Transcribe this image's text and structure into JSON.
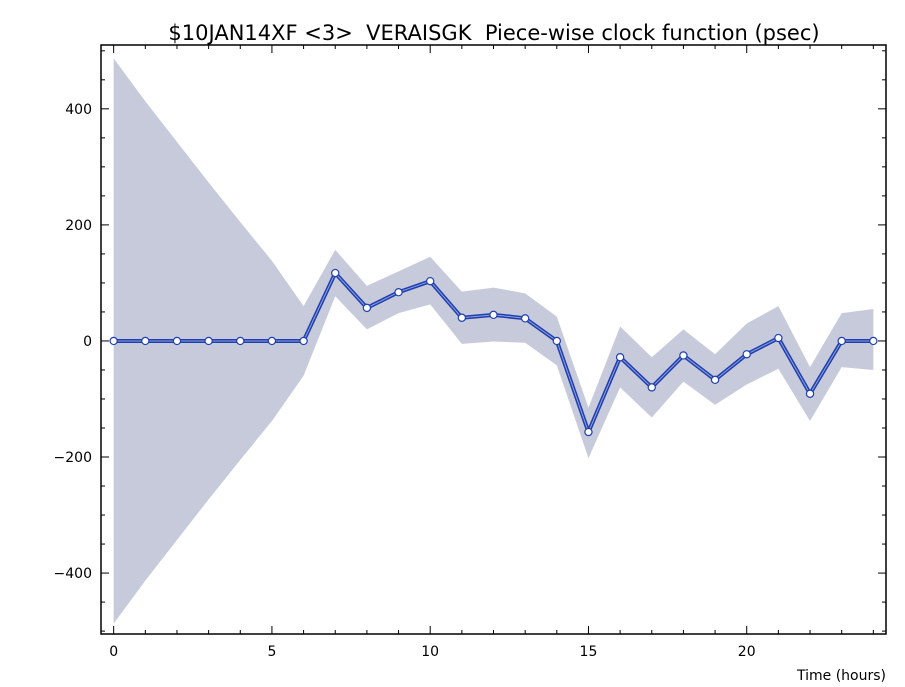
{
  "chart_data": {
    "type": "line",
    "title": "$10JAN14XF <3>  VERAISGK  Piece-wise clock function (psec)",
    "xlabel": "Time (hours)",
    "ylabel": "",
    "xlim": [
      -0.4,
      24.4
    ],
    "ylim": [
      -505,
      510
    ],
    "x_ticks": [
      "0",
      "5",
      "10",
      "15",
      "20"
    ],
    "y_ticks": [
      "400",
      "200",
      "0",
      "−200",
      "−400"
    ],
    "x_tick_values": [
      0,
      5,
      10,
      15,
      20
    ],
    "y_tick_values": [
      400,
      200,
      0,
      -200,
      -400
    ],
    "grid": false,
    "series": [
      {
        "x": [
          0,
          1,
          2,
          3,
          4,
          5,
          6,
          7,
          8,
          9,
          10,
          11,
          12,
          13,
          14,
          15,
          16,
          17,
          18,
          19,
          20,
          21,
          22,
          23,
          24
        ],
        "values": [
          0,
          0,
          0,
          0,
          0,
          0,
          0,
          117,
          57,
          84,
          103,
          40,
          45,
          39,
          0,
          -157,
          -28,
          -80,
          -25,
          -67,
          -23,
          5,
          -91,
          0,
          0
        ],
        "upper": [
          487,
          413,
          343,
          273,
          205,
          138,
          60,
          157,
          95,
          120,
          145,
          85,
          92,
          82,
          42,
          -115,
          25,
          -28,
          20,
          -23,
          30,
          60,
          -45,
          48,
          55
        ],
        "lower": [
          -487,
          -413,
          -343,
          -273,
          -205,
          -138,
          -60,
          77,
          20,
          48,
          63,
          -5,
          -1,
          -3,
          -42,
          -202,
          -80,
          -132,
          -70,
          -110,
          -75,
          -48,
          -138,
          -45,
          -50
        ]
      }
    ],
    "colors": {
      "line": "#1f3fb0",
      "band": "#c7cadb",
      "marker_fill": "#ffffff",
      "axis": "#000000"
    }
  }
}
